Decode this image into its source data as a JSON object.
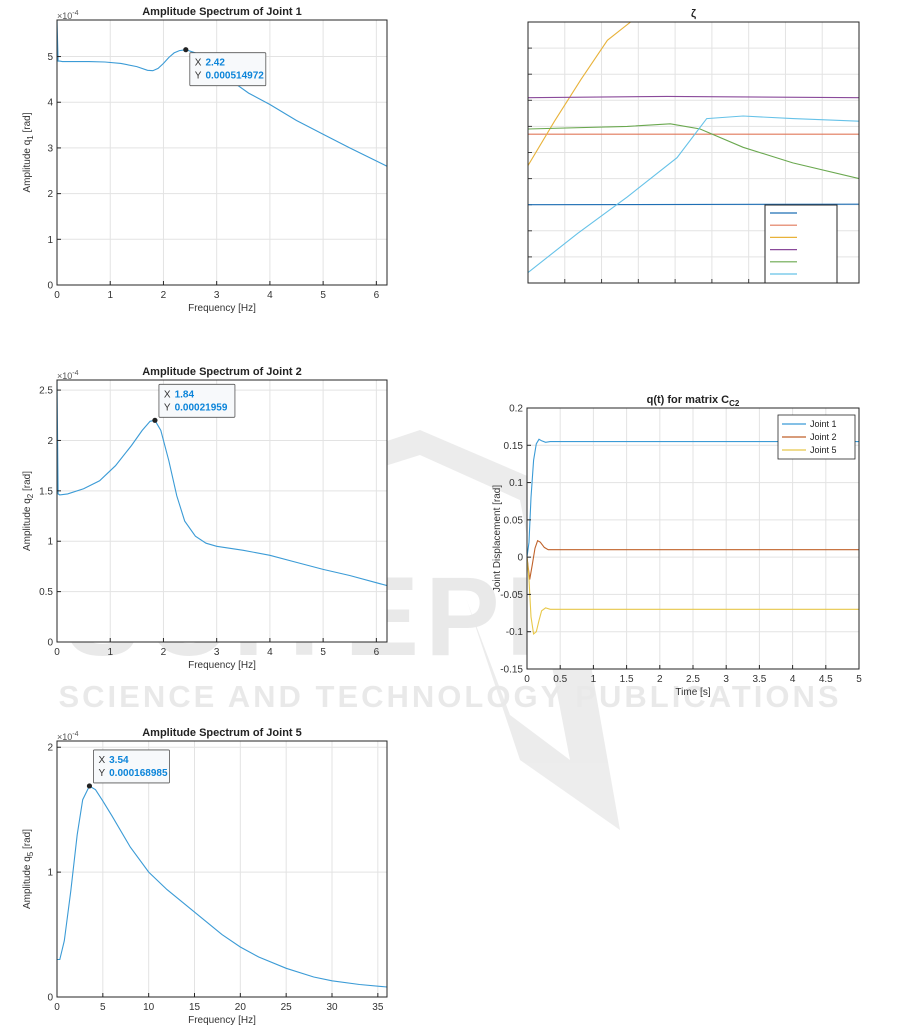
{
  "chart_data": [
    {
      "id": "j1",
      "type": "line",
      "title": "Amplitude Spectrum of Joint 1",
      "xlabel": "Frequency [Hz]",
      "ylabel": "Amplitude q",
      "ylabel_sub": "1",
      "ylabel_unit": " [rad]",
      "exponent": "×10",
      "exponent_power": "-4",
      "xlim": [
        0,
        6.2
      ],
      "ylim": [
        0,
        5.8
      ],
      "xticks": [
        0,
        1,
        2,
        3,
        4,
        5,
        6
      ],
      "yticks": [
        0,
        1,
        2,
        3,
        4,
        5
      ],
      "grid": true,
      "color": "#3b9bd6",
      "x": [
        0,
        0.02,
        0.05,
        0.1,
        0.3,
        0.6,
        0.9,
        1.2,
        1.5,
        1.7,
        1.8,
        1.9,
        2.0,
        2.1,
        2.2,
        2.3,
        2.42,
        2.6,
        2.8,
        3.0,
        3.3,
        3.6,
        4.0,
        4.5,
        5.0,
        5.5,
        6.2
      ],
      "values": [
        5.8,
        4.9,
        4.9,
        4.89,
        4.89,
        4.89,
        4.88,
        4.85,
        4.78,
        4.7,
        4.69,
        4.74,
        4.85,
        4.98,
        5.08,
        5.13,
        5.15,
        5.08,
        4.92,
        4.72,
        4.45,
        4.2,
        3.95,
        3.6,
        3.3,
        3.0,
        2.6
      ],
      "marker": {
        "x": 2.42,
        "y": 5.15
      },
      "datatip": {
        "x_label": "X",
        "x_value": "2.42",
        "y_label": "Y",
        "y_value": "0.000514972"
      }
    },
    {
      "id": "zeta",
      "type": "line",
      "title": "ζ",
      "xlim": [
        0,
        10
      ],
      "ylim": [
        0,
        10
      ],
      "grid": true,
      "series": [
        {
          "color": "#1f6fb5",
          "x": [
            0,
            10
          ],
          "values": [
            3.0,
            3.02
          ]
        },
        {
          "color": "#e0785a",
          "x": [
            0,
            10
          ],
          "values": [
            5.7,
            5.7
          ]
        },
        {
          "color": "#e8b23a",
          "x": [
            0,
            0.8,
            1.6,
            2.4,
            3.1,
            10
          ],
          "values": [
            4.5,
            6.2,
            7.8,
            9.3,
            10.0,
            10.0
          ]
        },
        {
          "color": "#8a4a9a",
          "x": [
            0,
            4.2,
            10
          ],
          "values": [
            7.1,
            7.15,
            7.1
          ]
        },
        {
          "color": "#6aa84f",
          "x": [
            0,
            3.0,
            4.3,
            5.2,
            6.5,
            8.0,
            10
          ],
          "values": [
            5.9,
            6.0,
            6.1,
            5.9,
            5.2,
            4.6,
            4.0
          ]
        },
        {
          "color": "#66c2e8",
          "x": [
            0,
            1.5,
            3.0,
            4.5,
            5.4,
            6.5,
            8.0,
            10
          ],
          "values": [
            0.4,
            1.9,
            3.3,
            4.8,
            6.3,
            6.4,
            6.3,
            6.2
          ]
        }
      ]
    },
    {
      "id": "j2",
      "type": "line",
      "title": "Amplitude Spectrum of Joint 2",
      "xlabel": "Frequency [Hz]",
      "ylabel": "Amplitude q",
      "ylabel_sub": "2",
      "ylabel_unit": " [rad]",
      "exponent": "×10",
      "exponent_power": "-4",
      "xlim": [
        0,
        6.2
      ],
      "ylim": [
        0,
        2.6
      ],
      "xticks": [
        0,
        1,
        2,
        3,
        4,
        5,
        6
      ],
      "yticks": [
        0,
        0.5,
        1,
        1.5,
        2,
        2.5
      ],
      "grid": true,
      "color": "#3b9bd6",
      "x": [
        0,
        0.02,
        0.05,
        0.2,
        0.5,
        0.8,
        1.1,
        1.4,
        1.6,
        1.75,
        1.84,
        1.95,
        2.1,
        2.25,
        2.4,
        2.6,
        2.8,
        3.0,
        3.5,
        4.0,
        4.5,
        5.0,
        5.5,
        6.2
      ],
      "values": [
        2.6,
        1.47,
        1.46,
        1.47,
        1.52,
        1.6,
        1.75,
        1.95,
        2.1,
        2.19,
        2.2,
        2.1,
        1.8,
        1.45,
        1.2,
        1.05,
        0.98,
        0.95,
        0.91,
        0.86,
        0.79,
        0.72,
        0.66,
        0.56
      ],
      "marker": {
        "x": 1.84,
        "y": 2.2
      },
      "datatip": {
        "x_label": "X",
        "x_value": "1.84",
        "y_label": "Y",
        "y_value": "0.00021959"
      }
    },
    {
      "id": "qt",
      "type": "line",
      "title": "q(t) for matrix C",
      "title_sub": "C2",
      "xlabel": "Time [s]",
      "ylabel": "Joint Displacement [rad]",
      "xlim": [
        0,
        5
      ],
      "ylim": [
        -0.15,
        0.2
      ],
      "xticks": [
        0,
        0.5,
        1,
        1.5,
        2,
        2.5,
        3,
        3.5,
        4,
        4.5,
        5
      ],
      "yticks": [
        -0.15,
        -0.1,
        -0.05,
        0,
        0.05,
        0.1,
        0.15,
        0.2
      ],
      "grid": true,
      "legend": "top-right",
      "series": [
        {
          "name": "Joint 1",
          "color": "#3b9bd6",
          "x": [
            0,
            0.03,
            0.06,
            0.1,
            0.14,
            0.18,
            0.22,
            0.28,
            0.35,
            0.5,
            1,
            5
          ],
          "values": [
            0,
            0.02,
            0.08,
            0.13,
            0.152,
            0.158,
            0.156,
            0.154,
            0.155,
            0.155,
            0.155,
            0.155
          ]
        },
        {
          "name": "Joint 2",
          "color": "#c0622a",
          "x": [
            0,
            0.04,
            0.08,
            0.12,
            0.16,
            0.2,
            0.26,
            0.32,
            0.4,
            0.5,
            1,
            5
          ],
          "values": [
            0,
            -0.03,
            -0.01,
            0.012,
            0.022,
            0.02,
            0.013,
            0.01,
            0.01,
            0.01,
            0.01,
            0.01
          ]
        },
        {
          "name": "Joint 5",
          "color": "#e8c84a",
          "x": [
            0,
            0.03,
            0.06,
            0.1,
            0.14,
            0.18,
            0.22,
            0.28,
            0.35,
            0.5,
            1,
            5
          ],
          "values": [
            0,
            -0.03,
            -0.08,
            -0.103,
            -0.1,
            -0.085,
            -0.072,
            -0.068,
            -0.07,
            -0.07,
            -0.07,
            -0.07
          ]
        }
      ]
    },
    {
      "id": "j5",
      "type": "line",
      "title": "Amplitude Spectrum of Joint 5",
      "xlabel": "Frequency [Hz]",
      "ylabel": "Amplitude q",
      "ylabel_sub": "5",
      "ylabel_unit": " [rad]",
      "exponent": "×10",
      "exponent_power": "-4",
      "xlim": [
        0,
        36
      ],
      "ylim": [
        0,
        2.05
      ],
      "xticks": [
        0,
        5,
        10,
        15,
        20,
        25,
        30,
        35
      ],
      "yticks": [
        0,
        1,
        2
      ],
      "grid": true,
      "color": "#3b9bd6",
      "x": [
        0,
        0.3,
        0.8,
        1.5,
        2.2,
        2.8,
        3.54,
        4.2,
        5,
        6,
        8,
        10,
        12,
        15,
        18,
        20,
        22,
        25,
        28,
        30,
        33,
        36
      ],
      "values": [
        0.3,
        0.3,
        0.45,
        0.85,
        1.3,
        1.58,
        1.69,
        1.66,
        1.57,
        1.45,
        1.2,
        1.0,
        0.86,
        0.68,
        0.5,
        0.4,
        0.32,
        0.23,
        0.16,
        0.13,
        0.1,
        0.08
      ],
      "marker": {
        "x": 3.54,
        "y": 1.69
      },
      "datatip": {
        "x_label": "X",
        "x_value": "3.54",
        "y_label": "Y",
        "y_value": "0.000168985"
      }
    }
  ],
  "watermark": {
    "line1": "SCITEPRESS",
    "line2": "SCIENCE AND TECHNOLOGY PUBLICATIONS"
  }
}
